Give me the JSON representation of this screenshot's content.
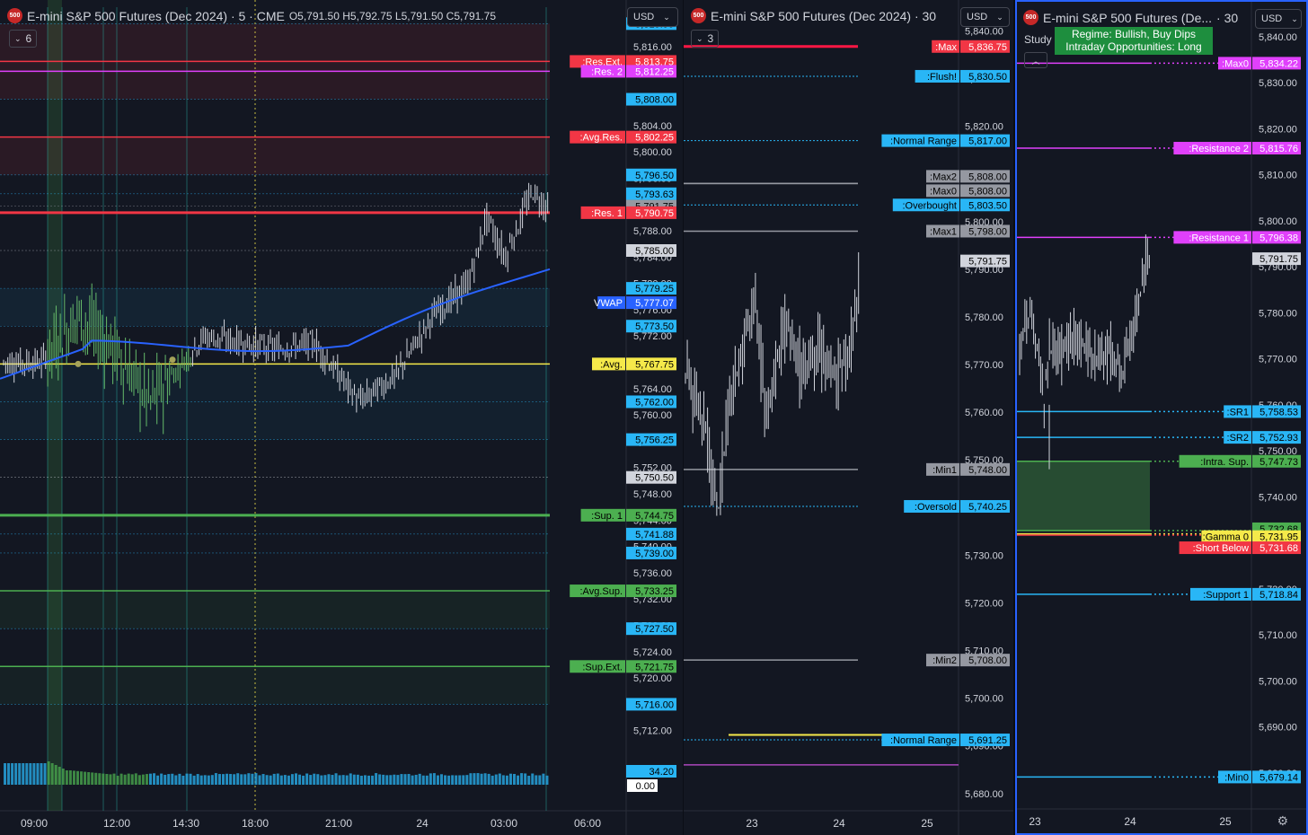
{
  "colors": {
    "bg": "#131722",
    "grid": "#2a2e39",
    "white": "#d1d4dc",
    "red": "#f23645",
    "pink": "#e040fb",
    "blue": "#29b6f6",
    "green": "#4caf50",
    "yellow": "#f5e94a",
    "gray": "#9598a1",
    "vwap": "#2962ff"
  },
  "pane1": {
    "title": "E-mini S&P 500 Futures (Dec 2024) · 5 · CME",
    "ohlc": "O5,791.50 H5,792.75 L5,791.50 C5,791.75",
    "currency": "USD",
    "indicator_count": "6",
    "scale": {
      "min": 5708,
      "max": 5822
    },
    "axis_ticks": [
      "5,816.00",
      "5,812.00",
      "5,808.00",
      "5,804.00",
      "5,800.00",
      "5,796.00",
      "5,792.00",
      "5,788.00",
      "5,784.00",
      "5,780.00",
      "5,776.00",
      "5,772.00",
      "5,768.00",
      "5,764.00",
      "5,760.00",
      "5,756.00",
      "5,752.00",
      "5,748.00",
      "5,744.00",
      "5,740.00",
      "5,736.00",
      "5,732.00",
      "5,728.00",
      "5,724.00",
      "5,720.00",
      "5,716.00",
      "5,712.00"
    ],
    "time_ticks": [
      "09:00",
      "12:00",
      "14:30",
      "18:00",
      "21:00",
      "24",
      "03:00",
      "06:00"
    ],
    "levels": [
      {
        "price": 5819.5,
        "label": "",
        "value": "5,819.50",
        "color": "#29b6f6"
      },
      {
        "price": 5813.75,
        "label": ":Res.Ext.",
        "value": "5,813.75",
        "color": "#f23645"
      },
      {
        "price": 5812.25,
        "label": ":Res. 2",
        "value": "5,812.25",
        "color": "#e040fb"
      },
      {
        "price": 5808.0,
        "label": "",
        "value": "5,808.00",
        "color": "#29b6f6"
      },
      {
        "price": 5802.25,
        "label": ":Avg.Res.",
        "value": "5,802.25",
        "color": "#f23645"
      },
      {
        "price": 5796.5,
        "label": "",
        "value": "5,796.50",
        "color": "#29b6f6"
      },
      {
        "price": 5793.63,
        "label": "",
        "value": "5,793.63",
        "color": "#29b6f6"
      },
      {
        "price": 5791.75,
        "label": "",
        "value": "5,791.75",
        "color": "#9598a1"
      },
      {
        "price": 5790.75,
        "label": ":Res. 1",
        "value": "5,790.75",
        "color": "#f23645"
      },
      {
        "price": 5785.0,
        "label": "",
        "value": "5,785.00",
        "color": "#d1d4dc"
      },
      {
        "price": 5779.25,
        "label": "",
        "value": "5,779.25",
        "color": "#29b6f6"
      },
      {
        "price": 5777.07,
        "label": "VWAP",
        "value": "5,777.07",
        "color": "#2962ff"
      },
      {
        "price": 5773.5,
        "label": "",
        "value": "5,773.50",
        "color": "#29b6f6"
      },
      {
        "price": 5767.75,
        "label": ":Avg.",
        "value": "5,767.75",
        "color": "#f5e94a"
      },
      {
        "price": 5762.0,
        "label": "",
        "value": "5,762.00",
        "color": "#29b6f6"
      },
      {
        "price": 5756.25,
        "label": "",
        "value": "5,756.25",
        "color": "#29b6f6"
      },
      {
        "price": 5750.5,
        "label": "",
        "value": "5,750.50",
        "color": "#d1d4dc"
      },
      {
        "price": 5744.75,
        "label": ":Sup. 1",
        "value": "5,744.75",
        "color": "#4caf50"
      },
      {
        "price": 5741.88,
        "label": "",
        "value": "5,741.88",
        "color": "#29b6f6"
      },
      {
        "price": 5739.0,
        "label": "",
        "value": "5,739.00",
        "color": "#29b6f6"
      },
      {
        "price": 5733.25,
        "label": ":Avg.Sup.",
        "value": "5,733.25",
        "color": "#4caf50"
      },
      {
        "price": 5727.5,
        "label": "",
        "value": "5,727.50",
        "color": "#29b6f6"
      },
      {
        "price": 5721.75,
        "label": ":Sup.Ext.",
        "value": "5,721.75",
        "color": "#4caf50"
      },
      {
        "price": 5716.0,
        "label": "",
        "value": "5,716.00",
        "color": "#29b6f6"
      }
    ],
    "volume_labels": [
      {
        "value": "34.20",
        "color": "#29b6f6"
      },
      {
        "value": "0.00",
        "color": "#ffffff"
      }
    ]
  },
  "pane2": {
    "title": "E-mini S&P 500 Futures (Dec 2024) · 30",
    "currency": "USD",
    "indicator_count": "3",
    "scale": {
      "min": 5676,
      "max": 5845
    },
    "axis_ticks": [
      "5,840.00",
      "5,830.00",
      "5,820.00",
      "5,810.00",
      "5,800.00",
      "5,790.00",
      "5,780.00",
      "5,770.00",
      "5,760.00",
      "5,750.00",
      "5,740.00",
      "5,730.00",
      "5,720.00",
      "5,710.00",
      "5,700.00",
      "5,690.00",
      "5,680.00"
    ],
    "time_ticks": [
      "23",
      "24",
      "25"
    ],
    "levels": [
      {
        "price": 5836.75,
        "label": ":Max",
        "value": "5,836.75",
        "color": "#f23645"
      },
      {
        "price": 5830.5,
        "label": ":Flush!",
        "value": "5,830.50",
        "color": "#29b6f6"
      },
      {
        "price": 5817.0,
        "label": ":Normal Range",
        "value": "5,817.00",
        "color": "#29b6f6"
      },
      {
        "price": 5808.0,
        "label": ":Max2",
        "value": "5,808.00",
        "color": "#9598a1"
      },
      {
        "price": 5808.0,
        "label": ":Max0",
        "value": "5,808.00",
        "color": "#9598a1"
      },
      {
        "price": 5803.5,
        "label": ":Overbought",
        "value": "5,803.50",
        "color": "#29b6f6"
      },
      {
        "price": 5798.0,
        "label": ":Max1",
        "value": "5,798.00",
        "color": "#9598a1"
      },
      {
        "price": 5791.75,
        "label": "",
        "value": "5,791.75",
        "color": "#9598a1"
      },
      {
        "price": 5748.0,
        "label": ":Min1",
        "value": "5,748.00",
        "color": "#9598a1"
      },
      {
        "price": 5740.25,
        "label": ":Oversold",
        "value": "5,740.25",
        "color": "#29b6f6"
      },
      {
        "price": 5708.0,
        "label": ":Min2",
        "value": "5,708.00",
        "color": "#9598a1"
      },
      {
        "price": 5691.25,
        "label": ":Normal Range",
        "value": "5,691.25",
        "color": "#29b6f6"
      }
    ]
  },
  "pane3": {
    "title": "E-mini S&P 500 Futures (De...",
    "interval": "· 30",
    "currency": "USD",
    "study": "Study",
    "regime": [
      "Regime: Bullish, Buy Dips",
      "Intraday Opportunities: Long"
    ],
    "scale": {
      "min": 5672,
      "max": 5846
    },
    "axis_ticks": [
      "5,840.00",
      "5,830.00",
      "5,820.00",
      "5,810.00",
      "5,800.00",
      "5,790.00",
      "5,780.00",
      "5,770.00",
      "5,760.00",
      "5,750.00",
      "5,740.00",
      "5,730.00",
      "5,720.00",
      "5,710.00",
      "5,700.00",
      "5,690.00",
      "5,680.00"
    ],
    "time_ticks": [
      "23",
      "24",
      "25"
    ],
    "levels": [
      {
        "price": 5834.22,
        "label": ":Max0",
        "value": "5,834.22",
        "color": "#e040fb"
      },
      {
        "price": 5815.76,
        "label": ":Resistance 2",
        "value": "5,815.76",
        "color": "#e040fb"
      },
      {
        "price": 5796.38,
        "label": ":Resistance 1",
        "value": "5,796.38",
        "color": "#e040fb"
      },
      {
        "price": 5791.75,
        "label": "",
        "value": "5,791.75",
        "color": "#9598a1"
      },
      {
        "price": 5758.53,
        "label": ":SR1",
        "value": "5,758.53",
        "color": "#29b6f6"
      },
      {
        "price": 5752.93,
        "label": ":SR2",
        "value": "5,752.93",
        "color": "#29b6f6"
      },
      {
        "price": 5747.73,
        "label": ":Intra. Sup.",
        "value": "5,747.73",
        "color": "#4caf50"
      },
      {
        "price": 5732.68,
        "label": "",
        "value": "5,732.68",
        "color": "#4caf50"
      },
      {
        "price": 5731.95,
        "label": ":Gamma 0",
        "value": "5,731.95",
        "color": "#f5e94a"
      },
      {
        "price": 5731.68,
        "label": ":Short Below",
        "value": "5,731.68",
        "color": "#f23645"
      },
      {
        "price": 5718.84,
        "label": ":Support 1",
        "value": "5,718.84",
        "color": "#29b6f6"
      },
      {
        "price": 5679.14,
        "label": ":Min0",
        "value": "5,679.14",
        "color": "#29b6f6"
      }
    ]
  }
}
